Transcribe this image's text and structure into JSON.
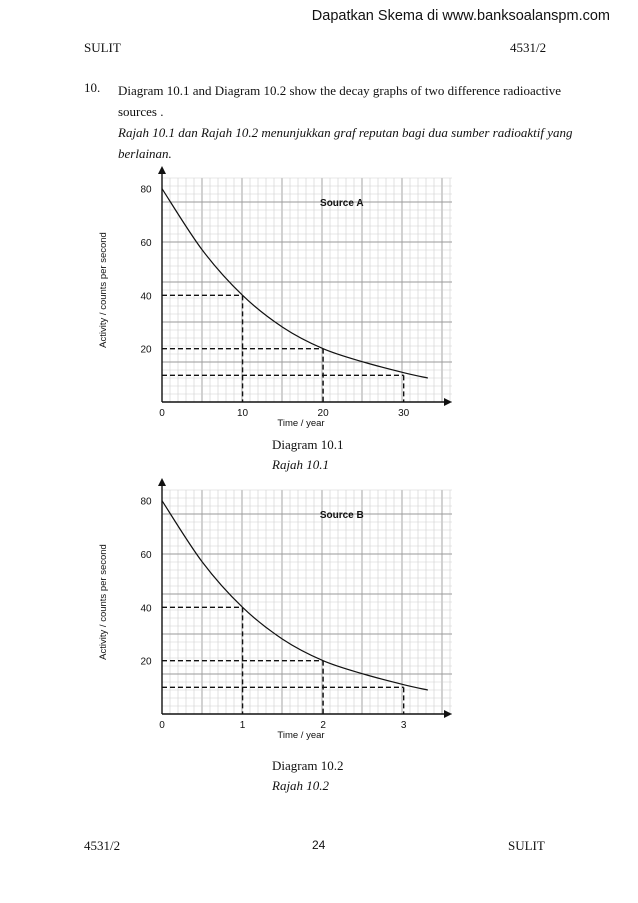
{
  "banner": "Dapatkan Skema di www.banksoalanspm.com",
  "header": {
    "left": "SULIT",
    "right": "4531/2"
  },
  "question": {
    "number": "10.",
    "english": "Diagram 10.1 and Diagram 10.2  show  the decay graphs of two difference radioactive sources .",
    "malay": "Rajah 10.1 dan Rajah 10.2 menunjukkan  graf reputan bagi dua sumber radioaktif yang berlainan."
  },
  "diagrams": [
    {
      "caption": "Diagram 10.1",
      "caption_malay": "Rajah 10.1"
    },
    {
      "caption": "Diagram 10.2",
      "caption_malay": "Rajah 10.2"
    }
  ],
  "footer": {
    "left": "4531/2",
    "page": "24",
    "right": "SULIT"
  },
  "chart_data": [
    {
      "type": "line",
      "title": "Source A",
      "xlabel": "Time / year",
      "ylabel": "Activity / counts per second",
      "x_ticks": [
        "0",
        "10",
        "20",
        "30"
      ],
      "y_ticks": [
        "20",
        "40",
        "60",
        "80"
      ],
      "xlim": [
        0,
        36
      ],
      "ylim": [
        0,
        84
      ],
      "grid": true,
      "series": [
        {
          "x": [
            0,
            5,
            10,
            15,
            20,
            25,
            30,
            33
          ],
          "y": [
            80,
            57,
            40,
            28,
            20,
            15,
            11,
            9
          ]
        }
      ],
      "guides": [
        {
          "x": 10,
          "y": 40
        },
        {
          "x": 20,
          "y": 20
        },
        {
          "x": 30,
          "y": 10
        }
      ]
    },
    {
      "type": "line",
      "title": "Source B",
      "xlabel": "Time / year",
      "ylabel": "Activity / counts per second",
      "x_ticks": [
        "0",
        "1",
        "2",
        "3"
      ],
      "y_ticks": [
        "20",
        "40",
        "60",
        "80"
      ],
      "xlim": [
        0,
        3.6
      ],
      "ylim": [
        0,
        84
      ],
      "grid": true,
      "series": [
        {
          "x": [
            0,
            0.5,
            1,
            1.5,
            2,
            2.5,
            3,
            3.3
          ],
          "y": [
            80,
            57,
            40,
            28,
            20,
            15,
            11,
            9
          ]
        }
      ],
      "guides": [
        {
          "x": 1,
          "y": 40
        },
        {
          "x": 2,
          "y": 20
        },
        {
          "x": 3,
          "y": 10
        }
      ]
    }
  ]
}
